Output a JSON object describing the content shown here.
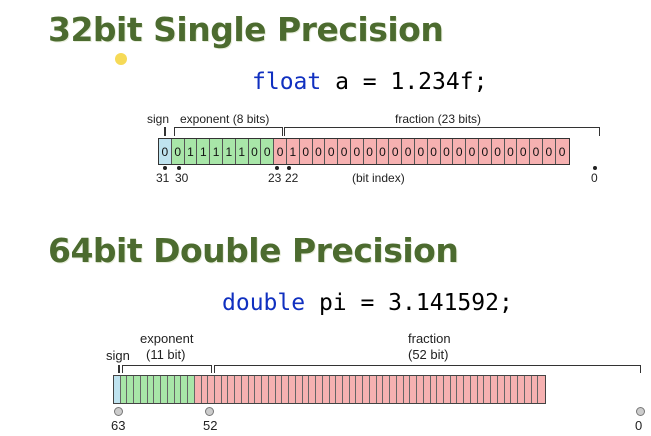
{
  "single": {
    "heading": "32bit Single Precision",
    "code_kw": "float",
    "code_rest": " a = 1.234f;",
    "labels": {
      "sign": "sign",
      "exponent": "exponent (8 bits)",
      "fraction": "fraction (23 bits)"
    },
    "bits": [
      "0",
      "0",
      "1",
      "1",
      "1",
      "1",
      "1",
      "0",
      "0",
      "0",
      "1",
      "0",
      "0",
      "0",
      "0",
      "0",
      "0",
      "0",
      "0",
      "0",
      "0",
      "0",
      "0",
      "0",
      "0",
      "0",
      "0",
      "0",
      "0",
      "0",
      "0",
      "0"
    ],
    "index_labels": {
      "i31": "31",
      "i30": "30",
      "i23": "23",
      "i22": "22",
      "caption": "(bit index)",
      "i0": "0"
    }
  },
  "double": {
    "heading": "64bit Double Precision",
    "code_kw": "double",
    "code_rest": " pi = 3.141592;",
    "labels": {
      "sign": "sign",
      "exponent_l1": "exponent",
      "exponent_l2": "(11 bit)",
      "fraction_l1": "fraction",
      "fraction_l2": "(52 bit)"
    },
    "index_labels": {
      "i63": "63",
      "i52": "52",
      "i0": "0"
    }
  },
  "colors": {
    "sign": "#bfe3ef",
    "exponent": "#a8e6a8",
    "fraction": "#f6b1b1",
    "heading": "#4c6b2f",
    "keyword": "#1030c0"
  }
}
